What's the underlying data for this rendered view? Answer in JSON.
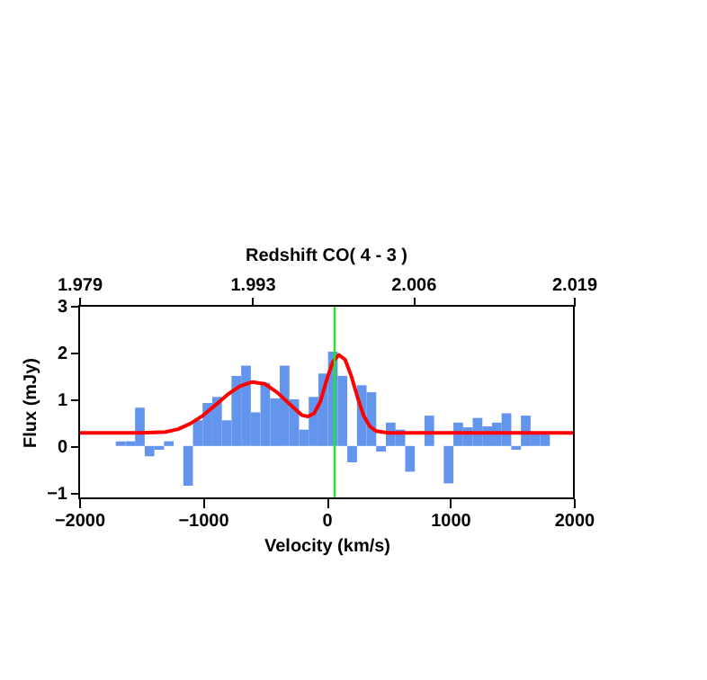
{
  "chart_data": {
    "type": "histogram",
    "title": "Redshift CO( 4 - 3 )",
    "xlabel": "Velocity (km/s)",
    "ylabel": "Flux (mJy)",
    "bins": [
      -1704,
      -1626,
      -1548,
      -1470,
      -1392,
      -1314,
      -1236,
      -1158,
      -1080,
      -1002,
      -924,
      -846,
      -768,
      -690,
      -612,
      -534,
      -456,
      -378,
      -300,
      -222,
      -144,
      -66,
      12,
      90,
      168,
      246,
      324,
      402,
      480,
      558,
      636,
      714,
      792,
      870,
      948,
      1026,
      1104,
      1182,
      1260,
      1338,
      1416,
      1494,
      1572,
      1650,
      1728,
      1806
    ],
    "values": [
      0.1,
      0.1,
      0.82,
      -0.22,
      -0.08,
      0.1,
      0.0,
      -0.85,
      0.55,
      0.92,
      1.05,
      0.55,
      1.5,
      1.72,
      0.72,
      1.35,
      1.02,
      1.72,
      1.0,
      0.35,
      1.05,
      1.55,
      2.02,
      1.5,
      -0.35,
      1.3,
      1.15,
      -0.12,
      0.5,
      0.35,
      -0.55,
      0.0,
      0.65,
      0.0,
      -0.8,
      0.5,
      0.4,
      0.6,
      0.42,
      0.5,
      0.7,
      -0.08,
      0.65,
      0.3,
      0.3
    ],
    "color": "#6495ed",
    "series": [
      {
        "type": "line",
        "color": "#ff0000",
        "x": [
          -2000,
          -1500,
          -1300,
          -1200,
          -1100,
          -1000,
          -900,
          -800,
          -700,
          -600,
          -500,
          -400,
          -300,
          -200,
          -150,
          -100,
          -50,
          0,
          50,
          100,
          150,
          200,
          250,
          300,
          350,
          400,
          500,
          2000
        ],
        "values": [
          0.28,
          0.28,
          0.3,
          0.36,
          0.48,
          0.65,
          0.87,
          1.1,
          1.28,
          1.37,
          1.33,
          1.15,
          0.9,
          0.66,
          0.63,
          0.7,
          0.95,
          1.4,
          1.8,
          1.95,
          1.85,
          1.5,
          1.05,
          0.65,
          0.42,
          0.32,
          0.28,
          0.28
        ]
      }
    ],
    "ref_lines": [
      {
        "axis": "x",
        "value": 65,
        "color": "#00ff00"
      }
    ],
    "xlim": [
      -2000,
      2000
    ],
    "xticks": [
      -2000,
      -1000,
      0,
      1000,
      2000
    ],
    "x2lim": [
      1.979,
      2.019
    ],
    "x2ticks": [
      1.979,
      1.993,
      2.006,
      2.019
    ],
    "ylim": [
      -1.12,
      3
    ],
    "yticks": [
      -1,
      0,
      1,
      2,
      3
    ],
    "grid": false
  }
}
